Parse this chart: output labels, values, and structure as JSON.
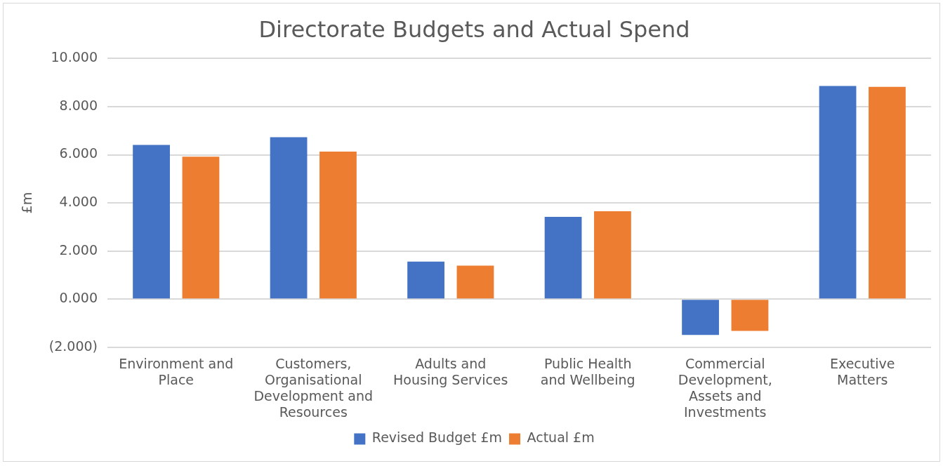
{
  "chart_data": {
    "type": "bar",
    "title": "Directorate Budgets and Actual Spend",
    "ylabel": "£m",
    "categories": [
      "Environment and Place",
      "Customers, Organisational Development and Resources",
      "Adults and Housing Services",
      "Public Health and Wellbeing",
      "Commercial Development, Assets and Investments",
      "Executive Matters"
    ],
    "series": [
      {
        "name": "Revised Budget £m",
        "color": "#4472c4",
        "values": [
          6.41,
          6.73,
          1.56,
          3.42,
          -1.49,
          8.86
        ]
      },
      {
        "name": "Actual £m",
        "color": "#ed7d31",
        "values": [
          5.92,
          6.13,
          1.39,
          3.65,
          -1.32,
          8.82
        ]
      }
    ],
    "ylim": [
      -2,
      10
    ],
    "yticks": [
      {
        "value": -2,
        "label": "(2.000)"
      },
      {
        "value": 0,
        "label": "0.000"
      },
      {
        "value": 2,
        "label": "2.000"
      },
      {
        "value": 4,
        "label": "4.000"
      },
      {
        "value": 6,
        "label": "6.000"
      },
      {
        "value": 8,
        "label": "8.000"
      },
      {
        "value": 10,
        "label": "10.000"
      }
    ],
    "grid": "y",
    "legend": "bottom"
  }
}
